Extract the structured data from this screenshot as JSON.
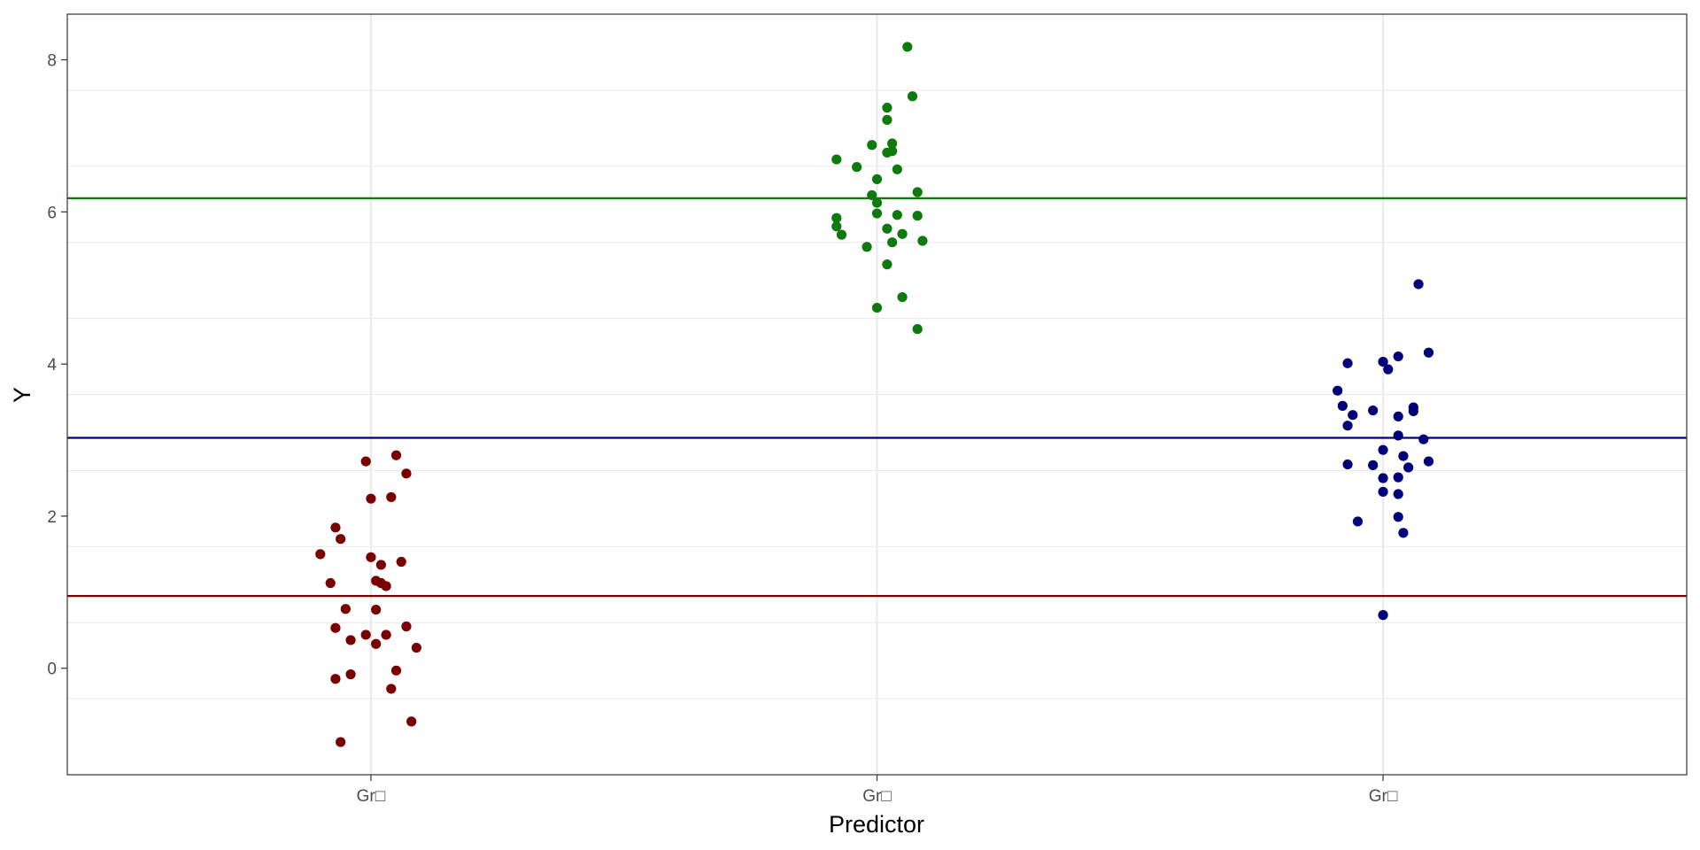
{
  "chart_data": {
    "type": "scatter",
    "title": "",
    "xlabel": "Predictor",
    "ylabel": "Y",
    "categories": [
      "Gr□",
      "Gr□",
      "Gr□"
    ],
    "ylim": [
      -1.4,
      8.6
    ],
    "yticks": [
      0,
      2,
      4,
      6,
      8
    ],
    "grid": true,
    "legend": "none",
    "series": [
      {
        "color": "#7a0000",
        "mean": 0.95,
        "points": [
          {
            "x": -0.1,
            "y": 1.5
          },
          {
            "x": -0.08,
            "y": 1.12
          },
          {
            "x": -0.07,
            "y": 1.85
          },
          {
            "x": -0.06,
            "y": 1.7
          },
          {
            "x": -0.01,
            "y": 2.72
          },
          {
            "x": 0.0,
            "y": 2.23
          },
          {
            "x": 0.04,
            "y": 2.25
          },
          {
            "x": 0.05,
            "y": 2.8
          },
          {
            "x": 0.07,
            "y": 2.56
          },
          {
            "x": 0.0,
            "y": 1.46
          },
          {
            "x": 0.02,
            "y": 1.36
          },
          {
            "x": 0.06,
            "y": 1.4
          },
          {
            "x": 0.01,
            "y": 1.15
          },
          {
            "x": 0.02,
            "y": 1.12
          },
          {
            "x": 0.03,
            "y": 1.08
          },
          {
            "x": -0.05,
            "y": 0.78
          },
          {
            "x": 0.01,
            "y": 0.77
          },
          {
            "x": -0.07,
            "y": 0.53
          },
          {
            "x": -0.04,
            "y": 0.37
          },
          {
            "x": -0.01,
            "y": 0.44
          },
          {
            "x": 0.01,
            "y": 0.32
          },
          {
            "x": 0.03,
            "y": 0.44
          },
          {
            "x": 0.07,
            "y": 0.55
          },
          {
            "x": 0.09,
            "y": 0.27
          },
          {
            "x": 0.05,
            "y": -0.03
          },
          {
            "x": -0.04,
            "y": -0.08
          },
          {
            "x": -0.07,
            "y": -0.14
          },
          {
            "x": 0.04,
            "y": -0.27
          },
          {
            "x": 0.08,
            "y": -0.7
          },
          {
            "x": -0.06,
            "y": -0.97
          }
        ]
      },
      {
        "color": "#0e7a0d",
        "mean": 6.18,
        "points": [
          {
            "x": 0.06,
            "y": 8.17
          },
          {
            "x": 0.07,
            "y": 7.52
          },
          {
            "x": 0.02,
            "y": 7.37
          },
          {
            "x": 0.02,
            "y": 7.21
          },
          {
            "x": -0.01,
            "y": 6.88
          },
          {
            "x": 0.03,
            "y": 6.9
          },
          {
            "x": 0.03,
            "y": 6.8
          },
          {
            "x": 0.02,
            "y": 6.78
          },
          {
            "x": -0.08,
            "y": 6.69
          },
          {
            "x": -0.04,
            "y": 6.59
          },
          {
            "x": 0.04,
            "y": 6.56
          },
          {
            "x": 0.0,
            "y": 6.43
          },
          {
            "x": 0.08,
            "y": 6.26
          },
          {
            "x": -0.01,
            "y": 6.22
          },
          {
            "x": 0.0,
            "y": 6.12
          },
          {
            "x": 0.0,
            "y": 5.98
          },
          {
            "x": 0.04,
            "y": 5.96
          },
          {
            "x": 0.08,
            "y": 5.95
          },
          {
            "x": -0.08,
            "y": 5.92
          },
          {
            "x": -0.08,
            "y": 5.81
          },
          {
            "x": 0.02,
            "y": 5.78
          },
          {
            "x": -0.07,
            "y": 5.7
          },
          {
            "x": 0.05,
            "y": 5.71
          },
          {
            "x": 0.03,
            "y": 5.6
          },
          {
            "x": 0.09,
            "y": 5.62
          },
          {
            "x": -0.02,
            "y": 5.54
          },
          {
            "x": 0.02,
            "y": 5.31
          },
          {
            "x": 0.05,
            "y": 4.88
          },
          {
            "x": 0.0,
            "y": 4.74
          },
          {
            "x": 0.08,
            "y": 4.46
          }
        ]
      },
      {
        "color": "#00007a",
        "mean": 3.03,
        "points": [
          {
            "x": 0.07,
            "y": 5.05
          },
          {
            "x": 0.09,
            "y": 4.15
          },
          {
            "x": 0.03,
            "y": 4.1
          },
          {
            "x": 0.0,
            "y": 4.03
          },
          {
            "x": -0.07,
            "y": 4.01
          },
          {
            "x": 0.01,
            "y": 3.93
          },
          {
            "x": -0.09,
            "y": 3.65
          },
          {
            "x": -0.08,
            "y": 3.45
          },
          {
            "x": 0.06,
            "y": 3.43
          },
          {
            "x": -0.02,
            "y": 3.39
          },
          {
            "x": 0.06,
            "y": 3.38
          },
          {
            "x": -0.06,
            "y": 3.33
          },
          {
            "x": 0.03,
            "y": 3.31
          },
          {
            "x": -0.07,
            "y": 3.19
          },
          {
            "x": 0.03,
            "y": 3.06
          },
          {
            "x": 0.08,
            "y": 3.01
          },
          {
            "x": 0.0,
            "y": 2.87
          },
          {
            "x": 0.04,
            "y": 2.79
          },
          {
            "x": 0.09,
            "y": 2.72
          },
          {
            "x": -0.07,
            "y": 2.68
          },
          {
            "x": -0.02,
            "y": 2.67
          },
          {
            "x": 0.05,
            "y": 2.64
          },
          {
            "x": 0.0,
            "y": 2.5
          },
          {
            "x": 0.03,
            "y": 2.51
          },
          {
            "x": 0.0,
            "y": 2.32
          },
          {
            "x": 0.03,
            "y": 2.29
          },
          {
            "x": 0.03,
            "y": 1.99
          },
          {
            "x": -0.05,
            "y": 1.93
          },
          {
            "x": 0.04,
            "y": 1.78
          },
          {
            "x": 0.0,
            "y": 0.7
          }
        ]
      }
    ]
  }
}
